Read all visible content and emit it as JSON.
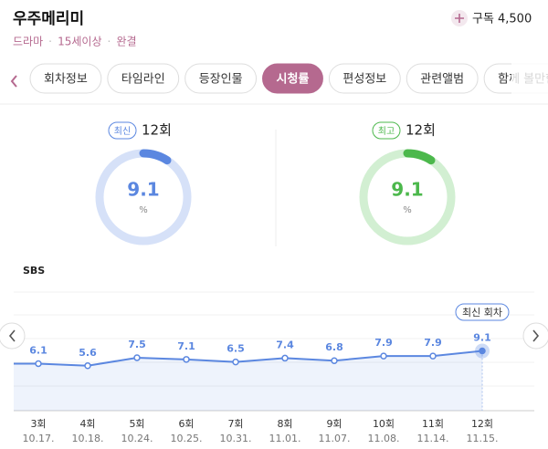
{
  "header": {
    "title": "우주메리미",
    "meta": [
      "드라마",
      "15세이상",
      "완결"
    ],
    "subscribe_label": "구독",
    "subscribe_count": "4,500"
  },
  "tabs": [
    "회차정보",
    "타임라인",
    "등장인물",
    "시청률",
    "편성정보",
    "관련앨범",
    "함께 볼만한"
  ],
  "active_tab": 3,
  "cards": [
    {
      "badge": "최신",
      "episode": "12회",
      "value": 9.1,
      "unit": "%",
      "color": "#5b87e0",
      "track": "#d6e1f8"
    },
    {
      "badge": "최고",
      "episode": "12회",
      "value": 9.1,
      "unit": "%",
      "color": "#4cb84c",
      "track": "#d2efd2"
    }
  ],
  "chart_data": {
    "type": "line",
    "subtitle": "SBS",
    "categories": [
      "3회",
      "4회",
      "5회",
      "6회",
      "7회",
      "8회",
      "9회",
      "10회",
      "11회",
      "12회"
    ],
    "dates": [
      "10.17.",
      "10.18.",
      "10.24.",
      "10.25.",
      "10.31.",
      "11.01.",
      "11.07.",
      "11.08.",
      "11.14.",
      "11.15."
    ],
    "values": [
      6.1,
      5.6,
      7.5,
      7.1,
      6.5,
      7.4,
      6.8,
      7.9,
      7.9,
      9.1
    ],
    "color": "#5b87e0",
    "annotation": "최신 회차",
    "ylim": [
      -5,
      23
    ]
  }
}
